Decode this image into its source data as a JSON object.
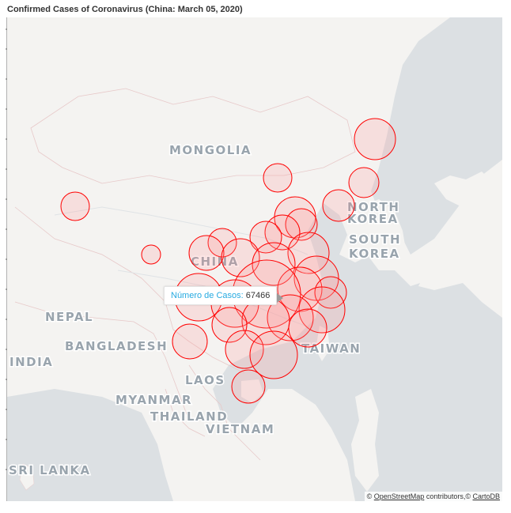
{
  "title": "Confirmed Cases of Coronavirus (China: March 05, 2020)",
  "map": {
    "countries": [
      "MONGOLIA",
      "NORTH",
      "KOREA",
      "SOUTH",
      "KOREA",
      "CHINA",
      "NEPAL",
      "BANGLADESH",
      "INDIA",
      "LAOS",
      "MYANMAR",
      "THAILAND",
      "VIETNAM",
      "TAIWAN",
      "SRI LANKA"
    ],
    "bubble_color": "#ff0000",
    "land_color": "#f4f3f1",
    "water_color": "#dce0e3",
    "tooltip": {
      "label": "Número de Casos:",
      "value": "67466"
    },
    "attribution": {
      "prefix": "©",
      "osm": "OpenStreetMap",
      "middle": " contributors,© ",
      "carto": "CartoDB"
    }
  }
}
